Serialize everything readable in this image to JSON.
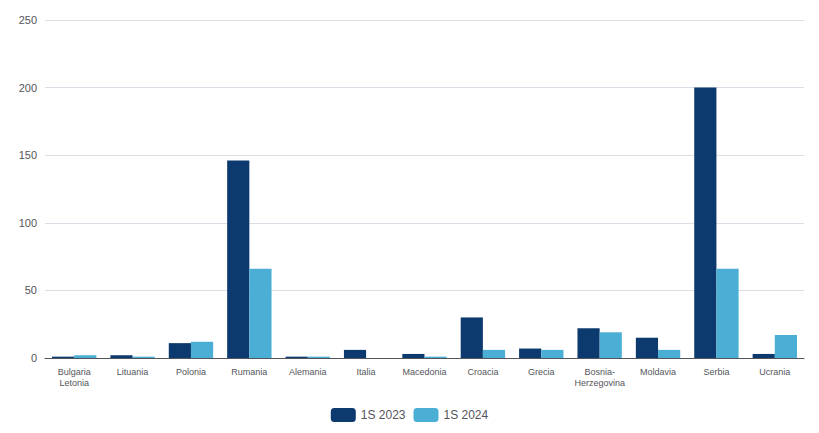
{
  "chart_data": {
    "type": "bar",
    "categories": [
      "Bulgaria\nLetonia",
      "Lituania",
      "Polonia",
      "Rumania",
      "Alemania",
      "Italia",
      "Macedonia",
      "Croacia",
      "Grecia",
      "Bosnia-\nHerzegovina",
      "Moldavia",
      "Serbia",
      "Ucrania"
    ],
    "series": [
      {
        "name": "1S 2023",
        "color": "#0d3a6e",
        "values": [
          1,
          2,
          11,
          146,
          1,
          6,
          3,
          30,
          7,
          22,
          15,
          200,
          3
        ]
      },
      {
        "name": "1S 2024",
        "color": "#4baed4",
        "values": [
          2,
          1,
          12,
          66,
          1,
          0,
          1,
          6,
          6,
          19,
          6,
          66,
          17
        ]
      }
    ],
    "ylim": [
      0,
      250
    ],
    "yticks": [
      0,
      50,
      100,
      150,
      200,
      250
    ],
    "grid": true,
    "legend": "bottom"
  }
}
